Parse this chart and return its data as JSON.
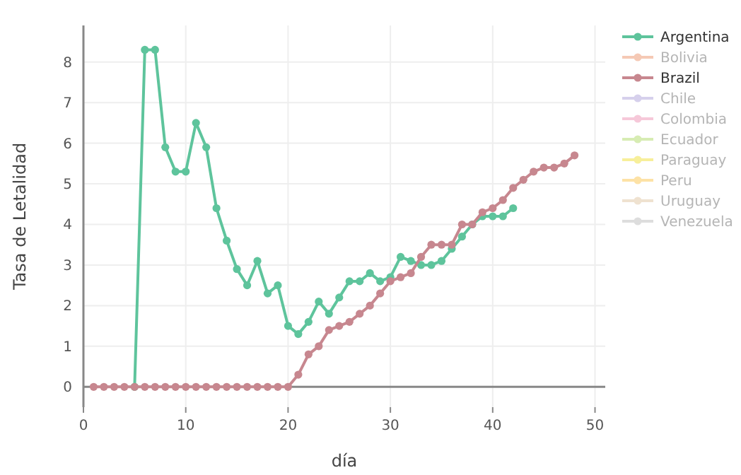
{
  "chart_data": {
    "type": "line",
    "xlabel": "día",
    "ylabel": "Tasa de Letalidad",
    "xlim": [
      0,
      51
    ],
    "ylim": [
      -0.5,
      8.9
    ],
    "xticks": [
      0,
      10,
      20,
      30,
      40,
      50
    ],
    "yticks": [
      0,
      1,
      2,
      3,
      4,
      5,
      6,
      7,
      8
    ],
    "grid": true,
    "legend": "top right",
    "marker": "circle",
    "line_style": "solid",
    "series": [
      {
        "name": "Argentina",
        "color": "#5ec49c",
        "x": [
          5,
          6,
          7,
          8,
          9,
          10,
          11,
          12,
          13,
          14,
          15,
          16,
          17,
          18,
          19,
          20,
          21,
          22,
          23,
          24,
          25,
          26,
          27,
          28,
          29,
          30,
          31,
          32,
          33,
          34,
          35,
          36,
          37,
          38,
          39,
          40,
          41,
          42
        ],
        "values": [
          0,
          8.3,
          8.3,
          5.9,
          5.3,
          5.3,
          6.5,
          5.9,
          4.4,
          3.6,
          2.9,
          2.5,
          3.1,
          2.3,
          2.5,
          1.5,
          1.3,
          1.6,
          2.1,
          1.8,
          2.2,
          2.6,
          2.6,
          2.8,
          2.6,
          2.7,
          3.2,
          3.1,
          3.0,
          3.0,
          3.1,
          3.4,
          3.7,
          4.0,
          4.2,
          4.2,
          4.2,
          4.4
        ]
      },
      {
        "name": "Bolivia",
        "color": "#f5c9b5"
      },
      {
        "name": "Brazil",
        "color": "#c7878f",
        "x": [
          1,
          2,
          3,
          4,
          5,
          6,
          7,
          8,
          9,
          10,
          11,
          12,
          13,
          14,
          15,
          16,
          17,
          18,
          19,
          20,
          21,
          22,
          23,
          24,
          25,
          26,
          27,
          28,
          29,
          30,
          31,
          32,
          33,
          34,
          35,
          36,
          37,
          38,
          39,
          40,
          41,
          42,
          43,
          44,
          45,
          46,
          47,
          48
        ],
        "values": [
          0,
          0,
          0,
          0,
          0,
          0,
          0,
          0,
          0,
          0,
          0,
          0,
          0,
          0,
          0,
          0,
          0,
          0,
          0,
          0,
          0.3,
          0.8,
          1.0,
          1.4,
          1.5,
          1.6,
          1.8,
          2.0,
          2.3,
          2.6,
          2.7,
          2.8,
          3.2,
          3.5,
          3.5,
          3.5,
          4.0,
          4.0,
          4.3,
          4.4,
          4.6,
          4.9,
          5.1,
          5.3,
          5.4,
          5.4,
          5.5,
          5.7
        ]
      },
      {
        "name": "Chile",
        "color": "#d6d0ec"
      },
      {
        "name": "Colombia",
        "color": "#f6c8d9"
      },
      {
        "name": "Ecuador",
        "color": "#d7ecb3"
      },
      {
        "name": "Paraguay",
        "color": "#f7ef9a"
      },
      {
        "name": "Peru",
        "color": "#fde2a6"
      },
      {
        "name": "Uruguay",
        "color": "#efe2d0"
      },
      {
        "name": "Venezuela",
        "color": "#dddddd"
      }
    ]
  }
}
